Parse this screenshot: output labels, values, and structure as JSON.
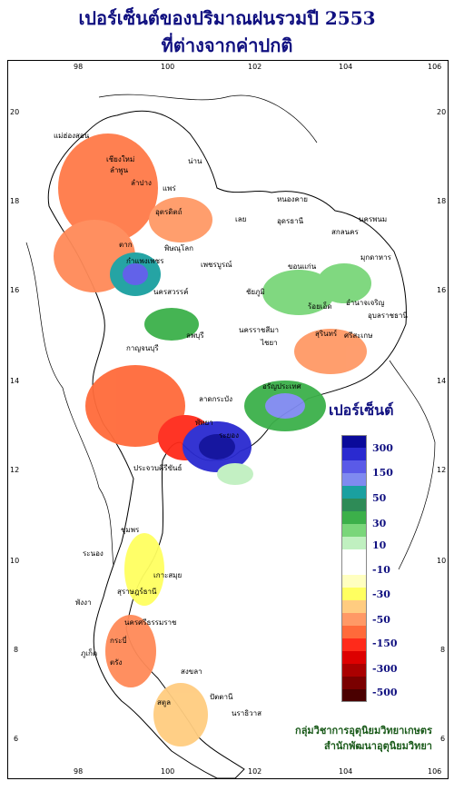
{
  "title": {
    "line1": "เปอร์เซ็นต์ของปริมาณฝนรวมปี  2553",
    "line2": "ที่ต่างจากค่าปกติ"
  },
  "axes": {
    "longitude_ticks": [
      "98",
      "100",
      "102",
      "104",
      "106"
    ],
    "latitude_ticks": [
      "20",
      "18",
      "16",
      "14",
      "12",
      "10",
      "8",
      "6"
    ]
  },
  "legend": {
    "title": "เปอร์เซ็นต์",
    "labels": [
      "300",
      "150",
      "50",
      "30",
      "10",
      "-10",
      "-30",
      "-50",
      "-150",
      "-300",
      "-500"
    ],
    "colors": [
      "#0a0a9a",
      "#2a2ad0",
      "#5a5ae8",
      "#7f8af0",
      "#1aa0a0",
      "#2e8b57",
      "#3cb04a",
      "#7ad67a",
      "#c0f0c0",
      "#ffffff",
      "#ffffff",
      "#ffffc0",
      "#ffff60",
      "#ffcc80",
      "#ff9966",
      "#ff6a3a",
      "#ff2a1a",
      "#dd0000",
      "#aa0000",
      "#7a0000",
      "#4a0000"
    ]
  },
  "provinces": [
    "แม่ฮ่องสอน",
    "เชียงใหม่",
    "ลำพูน",
    "น่าน",
    "ลำปาง",
    "แพร่",
    "อุตรดิตถ์",
    "ตาก",
    "กำแพงเพชร",
    "พิษณุโลก",
    "เพชรบูรณ์",
    "เลย",
    "หนองคาย",
    "อุดรธานี",
    "สกลนคร",
    "นครพนม",
    "มุกดาหาร",
    "ขอนแก่น",
    "ชัยภูมิ",
    "อุบลราชธานี",
    "นครราชสีมา",
    "ไชยา",
    "สุรินทร์",
    "นครสวรรค์",
    "ลพบุรี",
    "กาญจนบุรี",
    "อรัญประเทศ",
    "ระยอง",
    "พัทยา",
    "ประจวบคีรีขันธ์",
    "ชุมพร",
    "ระนอง",
    "เกาะสมุย",
    "สุราษฎร์ธานี",
    "พังงา",
    "ภูเก็ต",
    "นครศรีธรรมราช",
    "กระบี่",
    "ตรัง",
    "สงขลา",
    "ปัตตานี",
    "นราธิวาส",
    "สตูล",
    "ลาดกระบัง",
    "ศรีสะเกษ",
    "ร้อยเอ็ด",
    "อำนาจเจริญ"
  ],
  "credit": {
    "line1": "กลุ่มวิชาการอุตุนิยมวิทยาเกษตร",
    "line2": "สำนักพัฒนาอุตุนิยมวิทยา"
  },
  "colors": {
    "title": "#101080",
    "dry": "#ff6a3a",
    "wet": "#2a2ad0",
    "credit": "#1a5a1a"
  }
}
